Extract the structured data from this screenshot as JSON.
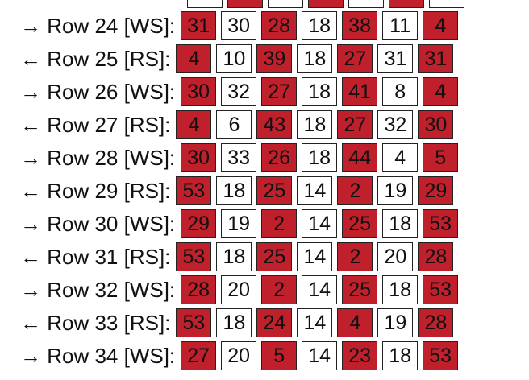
{
  "rows": [
    {
      "label": "→ Row 24 [WS]:",
      "cells": [
        31,
        30,
        28,
        18,
        38,
        11,
        4
      ]
    },
    {
      "label": "← Row 25 [RS]:",
      "cells": [
        4,
        10,
        39,
        18,
        27,
        31,
        31
      ]
    },
    {
      "label": "→ Row 26 [WS]:",
      "cells": [
        30,
        32,
        27,
        18,
        41,
        8,
        4
      ]
    },
    {
      "label": "← Row 27 [RS]:",
      "cells": [
        4,
        6,
        43,
        18,
        27,
        32,
        30
      ]
    },
    {
      "label": "→ Row 28 [WS]:",
      "cells": [
        30,
        33,
        26,
        18,
        44,
        4,
        5
      ]
    },
    {
      "label": "← Row 29 [RS]:",
      "cells": [
        53,
        18,
        25,
        14,
        2,
        19,
        29
      ]
    },
    {
      "label": "→ Row 30 [WS]:",
      "cells": [
        29,
        19,
        2,
        14,
        25,
        18,
        53
      ]
    },
    {
      "label": "← Row 31 [RS]:",
      "cells": [
        53,
        18,
        25,
        14,
        2,
        20,
        28
      ]
    },
    {
      "label": "→ Row 32 [WS]:",
      "cells": [
        28,
        20,
        2,
        14,
        25,
        18,
        53
      ]
    },
    {
      "label": "← Row 33 [RS]:",
      "cells": [
        53,
        18,
        24,
        14,
        4,
        19,
        28
      ]
    },
    {
      "label": "→ Row 34 [WS]:",
      "cells": [
        27,
        20,
        5,
        14,
        23,
        18,
        53
      ]
    }
  ]
}
